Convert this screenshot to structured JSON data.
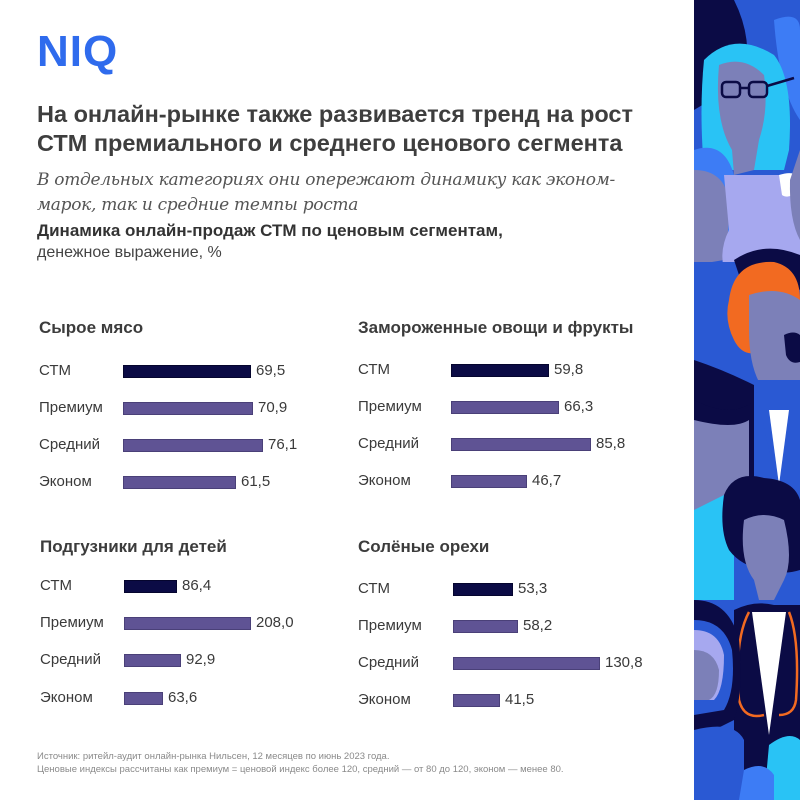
{
  "brand": {
    "logo": "NIQ",
    "color": "#2f6bed"
  },
  "headline": "На онлайн-рынке также развивается тренд на рост СТМ премиального и среднего ценового сегмента",
  "subheadline": "В отдельных категориях они опережают динамику как эконом-марок, так и средние темпы роста",
  "chart_heading": {
    "title": "Динамика онлайн-продаж СТМ по ценовым сегментам,",
    "subtitle": "денежное выражение, %"
  },
  "colors": {
    "stm": "#0b0b45",
    "segment": "#5f5394"
  },
  "chart_data": [
    {
      "type": "bar",
      "orientation": "horizontal",
      "title": "Сырое мясо",
      "categories": [
        "СТМ",
        "Премиум",
        "Средний",
        "Эконом"
      ],
      "values": [
        69.5,
        70.9,
        76.1,
        61.5
      ],
      "labels": [
        "69,5",
        "70,9",
        "76,1",
        "61,5"
      ]
    },
    {
      "type": "bar",
      "orientation": "horizontal",
      "title": "Замороженные овощи и фрукты",
      "categories": [
        "СТМ",
        "Премиум",
        "Средний",
        "Эконом"
      ],
      "values": [
        59.8,
        66.3,
        85.8,
        46.7
      ],
      "labels": [
        "59,8",
        "66,3",
        "85,8",
        "46,7"
      ]
    },
    {
      "type": "bar",
      "orientation": "horizontal",
      "title": "Подгузники для детей",
      "categories": [
        "СТМ",
        "Премиум",
        "Средний",
        "Эконом"
      ],
      "values": [
        86.4,
        208.0,
        92.9,
        63.6
      ],
      "labels": [
        "86,4",
        "208,0",
        "92,9",
        "63,6"
      ]
    },
    {
      "type": "bar",
      "orientation": "horizontal",
      "title": "Солёные орехи",
      "categories": [
        "СТМ",
        "Премиум",
        "Средний",
        "Эконом"
      ],
      "values": [
        53.3,
        58.2,
        130.8,
        41.5
      ],
      "labels": [
        "53,3",
        "58,2",
        "130,8",
        "41,5"
      ]
    }
  ],
  "footnotes": [
    "Источник: ритейл-аудит онлайн-рынка Нильсен, 12 месяцев по июнь 2023 года.",
    "Ценовые индексы рассчитаны как премиум = ценовой индекс более 120, средний — от 80 до 120, эконом — менее 80."
  ]
}
